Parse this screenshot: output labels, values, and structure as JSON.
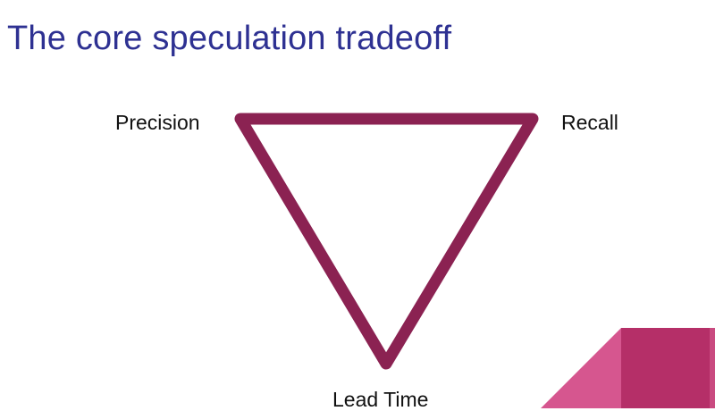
{
  "slide": {
    "title": "The core speculation tradeoff"
  },
  "diagram": {
    "vertices": {
      "top_left": "Precision",
      "top_right": "Recall",
      "bottom": "Lead Time"
    }
  },
  "colors": {
    "title": "#2e3192",
    "triangle_stroke": "#8b2252",
    "corner_light": "#d6568f",
    "corner_dark": "#b52f68",
    "corner_edge": "#c94a80"
  }
}
